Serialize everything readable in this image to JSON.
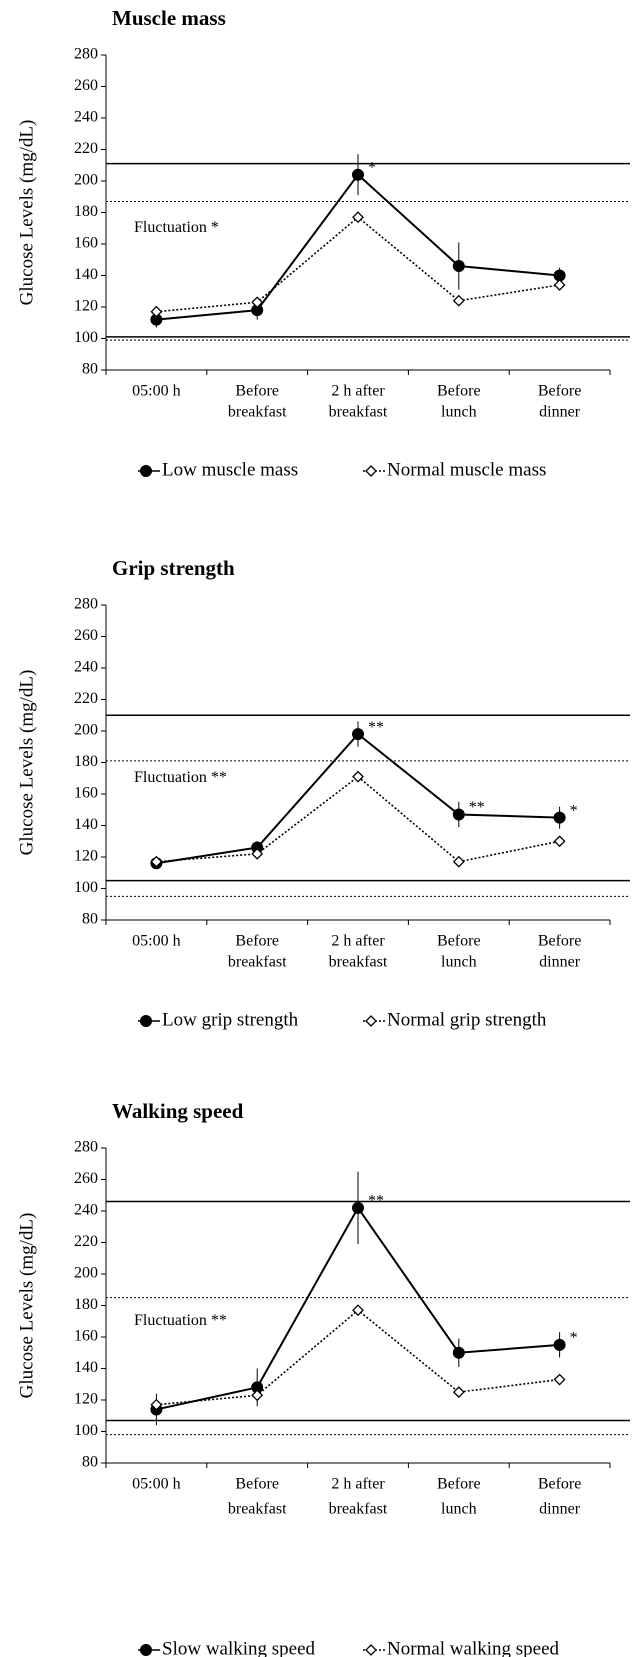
{
  "chart_data": [
    {
      "type": "line",
      "title": "Muscle mass",
      "ylabel": "Glucose Levels (mg/dL)",
      "categories": [
        [
          "05:00 h"
        ],
        [
          "Before",
          "breakfast"
        ],
        [
          "2 h after",
          "breakfast"
        ],
        [
          "Before",
          "lunch"
        ],
        [
          "Before",
          "dinner"
        ]
      ],
      "ylim": [
        80,
        280
      ],
      "yticks": [
        80,
        100,
        120,
        140,
        160,
        180,
        200,
        220,
        240,
        260,
        280
      ],
      "annotation": "Fluctuation *",
      "reference_lines": [
        {
          "value": 211,
          "style": "solid"
        },
        {
          "value": 187,
          "style": "dotted"
        },
        {
          "value": 101,
          "style": "solid"
        },
        {
          "value": 99,
          "style": "dotted"
        }
      ],
      "series": [
        {
          "name": "Low muscle mass",
          "color": "#000000",
          "marker": "circle",
          "line": "solid",
          "values": [
            112,
            118,
            204,
            146,
            140
          ],
          "errors": [
            5,
            6,
            13,
            15,
            5
          ],
          "point_labels": [
            null,
            null,
            "*",
            null,
            null
          ]
        },
        {
          "name": "Normal muscle mass",
          "color": "#000000",
          "marker": "diamond",
          "line": "dotted",
          "values": [
            117,
            123,
            177,
            124,
            134
          ],
          "errors": [
            2,
            2,
            3,
            2,
            2
          ],
          "point_labels": [
            null,
            null,
            null,
            null,
            null
          ]
        }
      ]
    },
    {
      "type": "line",
      "title": "Grip strength",
      "ylabel": "Glucose Levels (mg/dL)",
      "categories": [
        [
          "05:00 h"
        ],
        [
          "Before",
          "breakfast"
        ],
        [
          "2 h after",
          "breakfast"
        ],
        [
          "Before",
          "lunch"
        ],
        [
          "Before",
          "dinner"
        ]
      ],
      "ylim": [
        80,
        280
      ],
      "yticks": [
        80,
        100,
        120,
        140,
        160,
        180,
        200,
        220,
        240,
        260,
        280
      ],
      "annotation": "Fluctuation **",
      "reference_lines": [
        {
          "value": 210,
          "style": "solid"
        },
        {
          "value": 181,
          "style": "dotted"
        },
        {
          "value": 105,
          "style": "solid"
        },
        {
          "value": 95,
          "style": "dotted"
        }
      ],
      "series": [
        {
          "name": "Low grip strength",
          "color": "#000000",
          "marker": "circle",
          "line": "solid",
          "values": [
            116,
            126,
            198,
            147,
            145
          ],
          "errors": [
            3,
            4,
            8,
            8,
            7
          ],
          "point_labels": [
            null,
            null,
            "**",
            "**",
            "*"
          ]
        },
        {
          "name": "Normal grip strength",
          "color": "#000000",
          "marker": "diamond",
          "line": "dotted",
          "values": [
            117,
            122,
            171,
            117,
            130
          ],
          "errors": [
            2,
            2,
            3,
            2,
            2
          ],
          "point_labels": [
            null,
            null,
            null,
            null,
            null
          ]
        }
      ]
    },
    {
      "type": "line",
      "title": "Walking speed",
      "ylabel": "Glucose Levels (mg/dL)",
      "categories": [
        [
          "05:00 h"
        ],
        [
          "Before",
          "breakfast"
        ],
        [
          "2 h after",
          "breakfast"
        ],
        [
          "Before",
          "lunch"
        ],
        [
          "Before",
          "dinner"
        ]
      ],
      "ylim": [
        80,
        280
      ],
      "yticks": [
        80,
        100,
        120,
        140,
        160,
        180,
        200,
        220,
        240,
        260,
        280
      ],
      "annotation": "Fluctuation **",
      "reference_lines": [
        {
          "value": 246,
          "style": "solid"
        },
        {
          "value": 185,
          "style": "dotted"
        },
        {
          "value": 107,
          "style": "solid"
        },
        {
          "value": 98,
          "style": "dotted"
        }
      ],
      "series": [
        {
          "name": "Slow walking speed",
          "color": "#000000",
          "marker": "circle",
          "line": "solid",
          "values": [
            114,
            128,
            242,
            150,
            155
          ],
          "errors": [
            10,
            12,
            23,
            9,
            8
          ],
          "point_labels": [
            null,
            null,
            "**",
            null,
            "*"
          ]
        },
        {
          "name": "Normal walking speed",
          "color": "#000000",
          "marker": "diamond",
          "line": "dotted",
          "values": [
            117,
            123,
            177,
            125,
            133
          ],
          "errors": [
            3,
            3,
            3,
            2,
            2
          ],
          "point_labels": [
            null,
            null,
            null,
            null,
            null
          ]
        }
      ]
    }
  ]
}
